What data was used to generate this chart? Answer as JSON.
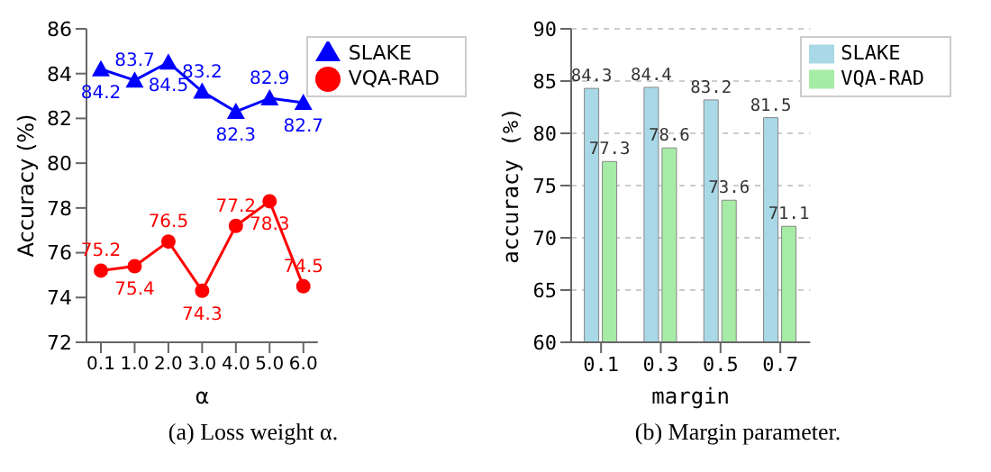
{
  "chart_data": [
    {
      "type": "line",
      "xlabel": "α",
      "ylabel": "Accuracy (%)",
      "categories": [
        "0.1",
        "1.0",
        "2.0",
        "3.0",
        "4.0",
        "5.0",
        "6.0"
      ],
      "series": [
        {
          "name": "SLAKE",
          "color": "#0000ff",
          "marker": "triangle",
          "values": [
            84.2,
            83.7,
            84.5,
            83.2,
            82.3,
            82.9,
            82.7
          ]
        },
        {
          "name": "VQA-RAD",
          "color": "#ff0000",
          "marker": "circle",
          "values": [
            75.2,
            75.4,
            76.5,
            74.3,
            77.2,
            78.3,
            74.5
          ]
        }
      ],
      "ylim": [
        72,
        86
      ],
      "yticks": [
        72,
        74,
        76,
        78,
        80,
        82,
        84,
        86
      ],
      "legend": "top right",
      "data_labels": true,
      "grid": false,
      "annotations": [
        "(a) Loss weight α."
      ]
    },
    {
      "type": "bar",
      "xlabel": "margin",
      "ylabel": "accuracy (%)",
      "categories": [
        "0.1",
        "0.3",
        "0.5",
        "0.7"
      ],
      "series": [
        {
          "name": "SLAKE",
          "color": "#a9d8e6",
          "values": [
            84.3,
            84.4,
            83.2,
            81.5
          ]
        },
        {
          "name": "VQA-RAD",
          "color": "#a6eba6",
          "values": [
            77.3,
            78.6,
            73.6,
            71.1
          ]
        }
      ],
      "ylim": [
        60,
        90
      ],
      "yticks": [
        60,
        65,
        70,
        75,
        80,
        85,
        90
      ],
      "legend": "top right",
      "data_labels": true,
      "grid": "y",
      "annotations": [
        "(b) Margin parameter."
      ]
    }
  ]
}
